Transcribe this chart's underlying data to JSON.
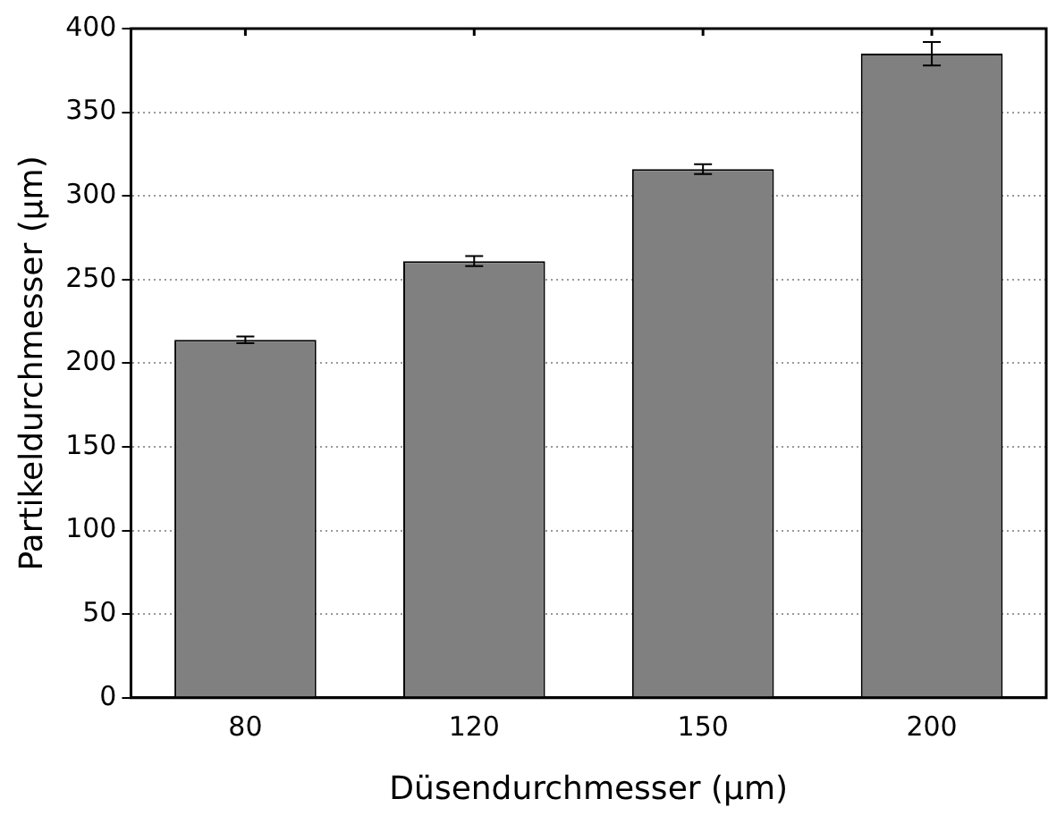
{
  "chart_data": {
    "type": "bar",
    "xlabel": "Düsendurchmesser (µm)",
    "ylabel": "Partikeldurchmesser (µm)",
    "categories": [
      "80",
      "120",
      "150",
      "200"
    ],
    "values": [
      214,
      261,
      316,
      385
    ],
    "errors": [
      2,
      3,
      3,
      7
    ],
    "color": "#808080",
    "ylim": [
      0,
      400
    ],
    "yticks": [
      0,
      50,
      100,
      150,
      200,
      250,
      300,
      350,
      400
    ],
    "grid": "y"
  }
}
